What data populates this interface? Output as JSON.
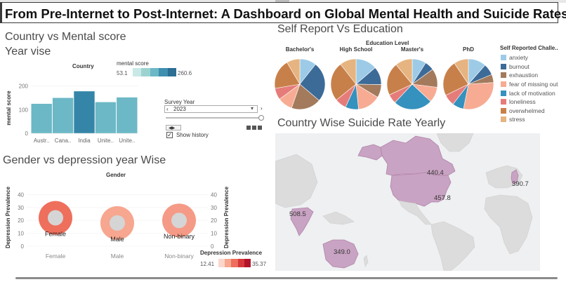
{
  "header": {
    "title": "From Pre-Internet to Post-Internet: A Dashboard on Global Mental Health and Suicide Rates"
  },
  "country_panel": {
    "title_line1": "Country vs Mental score",
    "title_line2": "Year vise",
    "column_header": "Country",
    "legend_title": "mental score",
    "legend_min": "53.1",
    "legend_max": "260.6",
    "ramp_colors": [
      "#c9e9e6",
      "#9cd3d1",
      "#6cb8c6",
      "#3f8fb0",
      "#2c6e94"
    ]
  },
  "filter": {
    "label": "Survey Year",
    "value": "2023",
    "show_history_label": "Show history",
    "show_history_checked": true
  },
  "gender_panel": {
    "title": "Gender vs depression year Wise",
    "column_header": "Gender",
    "y_axis_label": "Depression Prevalence",
    "legend_title": "Depression Prevalence",
    "legend_min": "12.41",
    "legend_max": "35.37",
    "ramp_colors": [
      "#fbd6cc",
      "#f7a68f",
      "#ee6f5c",
      "#d6373a",
      "#b3132a"
    ]
  },
  "education_panel": {
    "title": "Self Report Vs Education",
    "column_header": "Education Level",
    "legend_title": "Self Reported Challe..",
    "categories": [
      "anxiety",
      "burnout",
      "exhaustion",
      "fear of missing out",
      "lack of motivation",
      "loneliness",
      "overwhelmed",
      "stress"
    ],
    "colors": [
      "#9dcbe7",
      "#3d6b98",
      "#a37a5c",
      "#f7ab93",
      "#3591bd",
      "#e67c7a",
      "#c8804a",
      "#e6b480"
    ]
  },
  "map_panel": {
    "title": "Country Wise Suicide Rate Yearly"
  },
  "chart_data": [
    {
      "type": "bar",
      "title": "Country vs Mental score Year vise",
      "xlabel": "Country",
      "ylabel": "mental score",
      "ylim": [
        0,
        220
      ],
      "yticks": [
        0,
        100,
        200
      ],
      "categories": [
        "Austr..",
        "Cana..",
        "India",
        "Unite..",
        "Unite.."
      ],
      "values": [
        125,
        150,
        178,
        132,
        152
      ],
      "colors": [
        "#6cb8c6",
        "#6cb8c6",
        "#3585a8",
        "#6cb8c6",
        "#6cb8c6"
      ]
    },
    {
      "type": "scatter",
      "title": "Gender vs depression year Wise",
      "xlabel": "Gender",
      "ylabel": "Depression Prevalence",
      "ylim": [
        0,
        50
      ],
      "yticks": [
        0,
        10,
        20,
        30,
        40
      ],
      "categories": [
        "Female",
        "Male",
        "Non-binary"
      ],
      "values": [
        22,
        18,
        20
      ],
      "colors": [
        "#ee6f5c",
        "#f7a68f",
        "#f59a86"
      ]
    },
    {
      "type": "pie",
      "title": "Self Report Vs Education",
      "categories": [
        "anxiety",
        "burnout",
        "exhaustion",
        "fear of missing out",
        "lack of motivation",
        "loneliness",
        "overwhelmed",
        "stress"
      ],
      "series": [
        {
          "name": "Bachelor's",
          "values": [
            10,
            24,
            18,
            9,
            0,
            7,
            18,
            8
          ]
        },
        {
          "name": "High School",
          "values": [
            13,
            11,
            8,
            14,
            8,
            7,
            24,
            10
          ]
        },
        {
          "name": "Master's",
          "values": [
            9,
            6,
            12,
            10,
            25,
            6,
            21,
            11
          ]
        },
        {
          "name": "PhD",
          "values": [
            11,
            7,
            5,
            28,
            7,
            7,
            22,
            9
          ]
        }
      ]
    },
    {
      "type": "map",
      "title": "Country Wise Suicide Rate Yearly",
      "regions": [
        "Canada",
        "United States",
        "India",
        "Australia",
        "United Kingdom"
      ],
      "values": [
        440.4,
        457.8,
        508.5,
        349.0,
        390.7
      ],
      "labels": [
        "440.4",
        "457.8",
        "508.5",
        "349.0",
        "390.7"
      ]
    }
  ]
}
